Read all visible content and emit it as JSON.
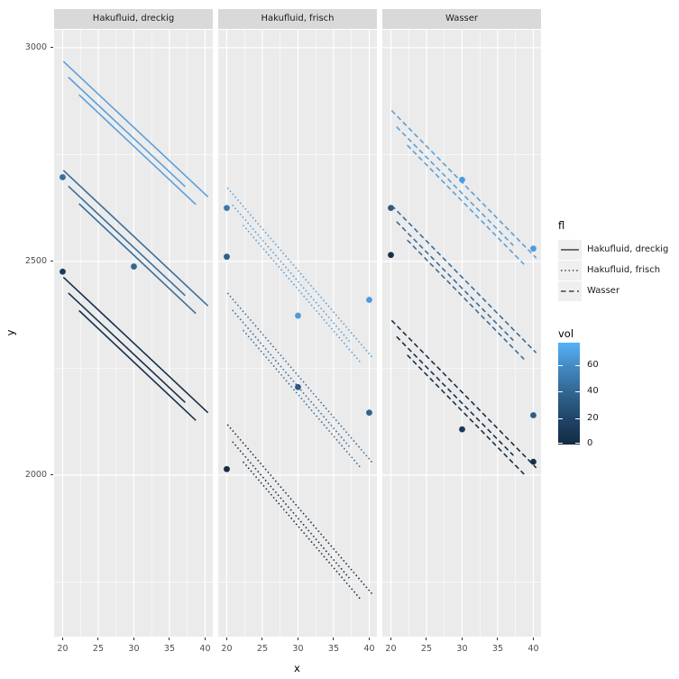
{
  "chart_data": {
    "type": "line",
    "xlabel": "x",
    "ylabel": "y",
    "x_ticks": [
      20,
      25,
      30,
      35,
      40
    ],
    "x_minor_ticks": [
      22.5,
      27.5,
      32.5,
      37.5
    ],
    "y_ticks": [
      3000,
      2500,
      2000
    ],
    "y_tick_labels": [
      "3000",
      "2500",
      "2000"
    ],
    "y_minor_ticks": [
      2750,
      2250,
      1750
    ],
    "x_range": [
      18.8,
      41.08
    ],
    "y_range": [
      1622,
      3042
    ],
    "grid": true,
    "panel_bg": "#ebebeb",
    "grid_color": "#ffffff",
    "facets": [
      {
        "label": "Hakufluid, dreckig",
        "linetype": "solid",
        "lines": [
          {
            "x1": 20.1,
            "y1": 2968,
            "x2": 40.4,
            "y2": 2651,
            "color": "#5b9fd9"
          },
          {
            "x1": 20.8,
            "y1": 2931,
            "x2": 37.2,
            "y2": 2675,
            "color": "#5b9fd9"
          },
          {
            "x1": 22.3,
            "y1": 2890,
            "x2": 38.7,
            "y2": 2633,
            "color": "#5b9fd9"
          },
          {
            "x1": 20.1,
            "y1": 2713,
            "x2": 40.4,
            "y2": 2396,
            "color": "#3a6d9b"
          },
          {
            "x1": 20.8,
            "y1": 2676,
            "x2": 37.2,
            "y2": 2420,
            "color": "#3a6d9b"
          },
          {
            "x1": 22.3,
            "y1": 2635,
            "x2": 38.7,
            "y2": 2378,
            "color": "#3a6d9b"
          },
          {
            "x1": 20.1,
            "y1": 2463,
            "x2": 40.4,
            "y2": 2146,
            "color": "#16304a"
          },
          {
            "x1": 20.8,
            "y1": 2426,
            "x2": 37.2,
            "y2": 2170,
            "color": "#16304a"
          },
          {
            "x1": 22.3,
            "y1": 2385,
            "x2": 38.7,
            "y2": 2128,
            "color": "#16304a"
          }
        ],
        "points": [
          {
            "x": 20,
            "y": 2697,
            "color": "#3a6d99"
          },
          {
            "x": 30,
            "y": 2488,
            "color": "#35688f"
          },
          {
            "x": 20,
            "y": 2476,
            "color": "#1d3c59"
          }
        ]
      },
      {
        "label": "Hakufluid, frisch",
        "linetype": "dotted",
        "lines": [
          {
            "x1": 20.1,
            "y1": 2672,
            "x2": 40.4,
            "y2": 2276,
            "color": "#5b9fd9"
          },
          {
            "x1": 20.8,
            "y1": 2632,
            "x2": 37.2,
            "y2": 2313,
            "color": "#5b9fd9"
          },
          {
            "x1": 22.3,
            "y1": 2585,
            "x2": 38.7,
            "y2": 2265,
            "color": "#5b9fd9"
          },
          {
            "x1": 20.1,
            "y1": 2426,
            "x2": 40.4,
            "y2": 2030,
            "color": "#3a6d9b"
          },
          {
            "x1": 20.8,
            "y1": 2386,
            "x2": 37.2,
            "y2": 2067,
            "color": "#3a6d9b"
          },
          {
            "x1": 22.3,
            "y1": 2339,
            "x2": 38.7,
            "y2": 2019,
            "color": "#3a6d9b"
          },
          {
            "x1": 20.1,
            "y1": 2118,
            "x2": 40.4,
            "y2": 1722,
            "color": "#16304a"
          },
          {
            "x1": 20.8,
            "y1": 2078,
            "x2": 37.2,
            "y2": 1759,
            "color": "#16304a"
          },
          {
            "x1": 22.3,
            "y1": 2031,
            "x2": 38.7,
            "y2": 1711,
            "color": "#16304a"
          }
        ],
        "points": [
          {
            "x": 20,
            "y": 2625,
            "color": "#3f77a9"
          },
          {
            "x": 20,
            "y": 2511,
            "color": "#2f5e88"
          },
          {
            "x": 30,
            "y": 2373,
            "color": "#4e9bdb"
          },
          {
            "x": 40,
            "y": 2410,
            "color": "#4e9bdb"
          },
          {
            "x": 30,
            "y": 2206,
            "color": "#2d5a83"
          },
          {
            "x": 40,
            "y": 2146,
            "color": "#31628e"
          },
          {
            "x": 20,
            "y": 2014,
            "color": "#142c44"
          }
        ]
      },
      {
        "label": "Wasser",
        "linetype": "dashed",
        "lines": [
          {
            "x1": 20.1,
            "y1": 2853,
            "x2": 40.4,
            "y2": 2508,
            "color": "#5b9fd9"
          },
          {
            "x1": 20.8,
            "y1": 2815,
            "x2": 37.2,
            "y2": 2537,
            "color": "#5b9fd9"
          },
          {
            "x1": 22.3,
            "y1": 2772,
            "x2": 38.7,
            "y2": 2493,
            "color": "#5b9fd9"
          },
          {
            "x1": 20.1,
            "y1": 2631,
            "x2": 40.4,
            "y2": 2286,
            "color": "#3a6d9b"
          },
          {
            "x1": 20.8,
            "y1": 2593,
            "x2": 37.2,
            "y2": 2315,
            "color": "#3a6d9b"
          },
          {
            "x1": 22.3,
            "y1": 2550,
            "x2": 38.7,
            "y2": 2271,
            "color": "#3a6d9b"
          },
          {
            "x1": 20.1,
            "y1": 2362,
            "x2": 40.4,
            "y2": 2017,
            "color": "#16304a"
          },
          {
            "x1": 20.8,
            "y1": 2324,
            "x2": 37.2,
            "y2": 2046,
            "color": "#16304a"
          },
          {
            "x1": 22.3,
            "y1": 2281,
            "x2": 38.7,
            "y2": 2002,
            "color": "#16304a"
          }
        ],
        "points": [
          {
            "x": 20,
            "y": 2625,
            "color": "#2e5c86"
          },
          {
            "x": 20,
            "y": 2515,
            "color": "#16304a"
          },
          {
            "x": 30,
            "y": 2691,
            "color": "#4e9bdb"
          },
          {
            "x": 40,
            "y": 2530,
            "color": "#4e9bdb"
          },
          {
            "x": 30,
            "y": 2107,
            "color": "#1b3a57"
          },
          {
            "x": 40,
            "y": 2140,
            "color": "#2e5c86"
          },
          {
            "x": 40,
            "y": 2031,
            "color": "#17324e"
          }
        ]
      }
    ],
    "legend_fl": {
      "title": "fl",
      "items": [
        {
          "label": "Hakufluid, dreckig",
          "linetype": "solid"
        },
        {
          "label": "Hakufluid, frisch",
          "linetype": "dotted"
        },
        {
          "label": "Wasser",
          "linetype": "dashed"
        }
      ]
    },
    "legend_vol": {
      "title": "vol",
      "tick_labels": [
        "60",
        "40",
        "20",
        "0"
      ],
      "low_color": "#132b43",
      "high_color": "#56b1f7"
    }
  }
}
